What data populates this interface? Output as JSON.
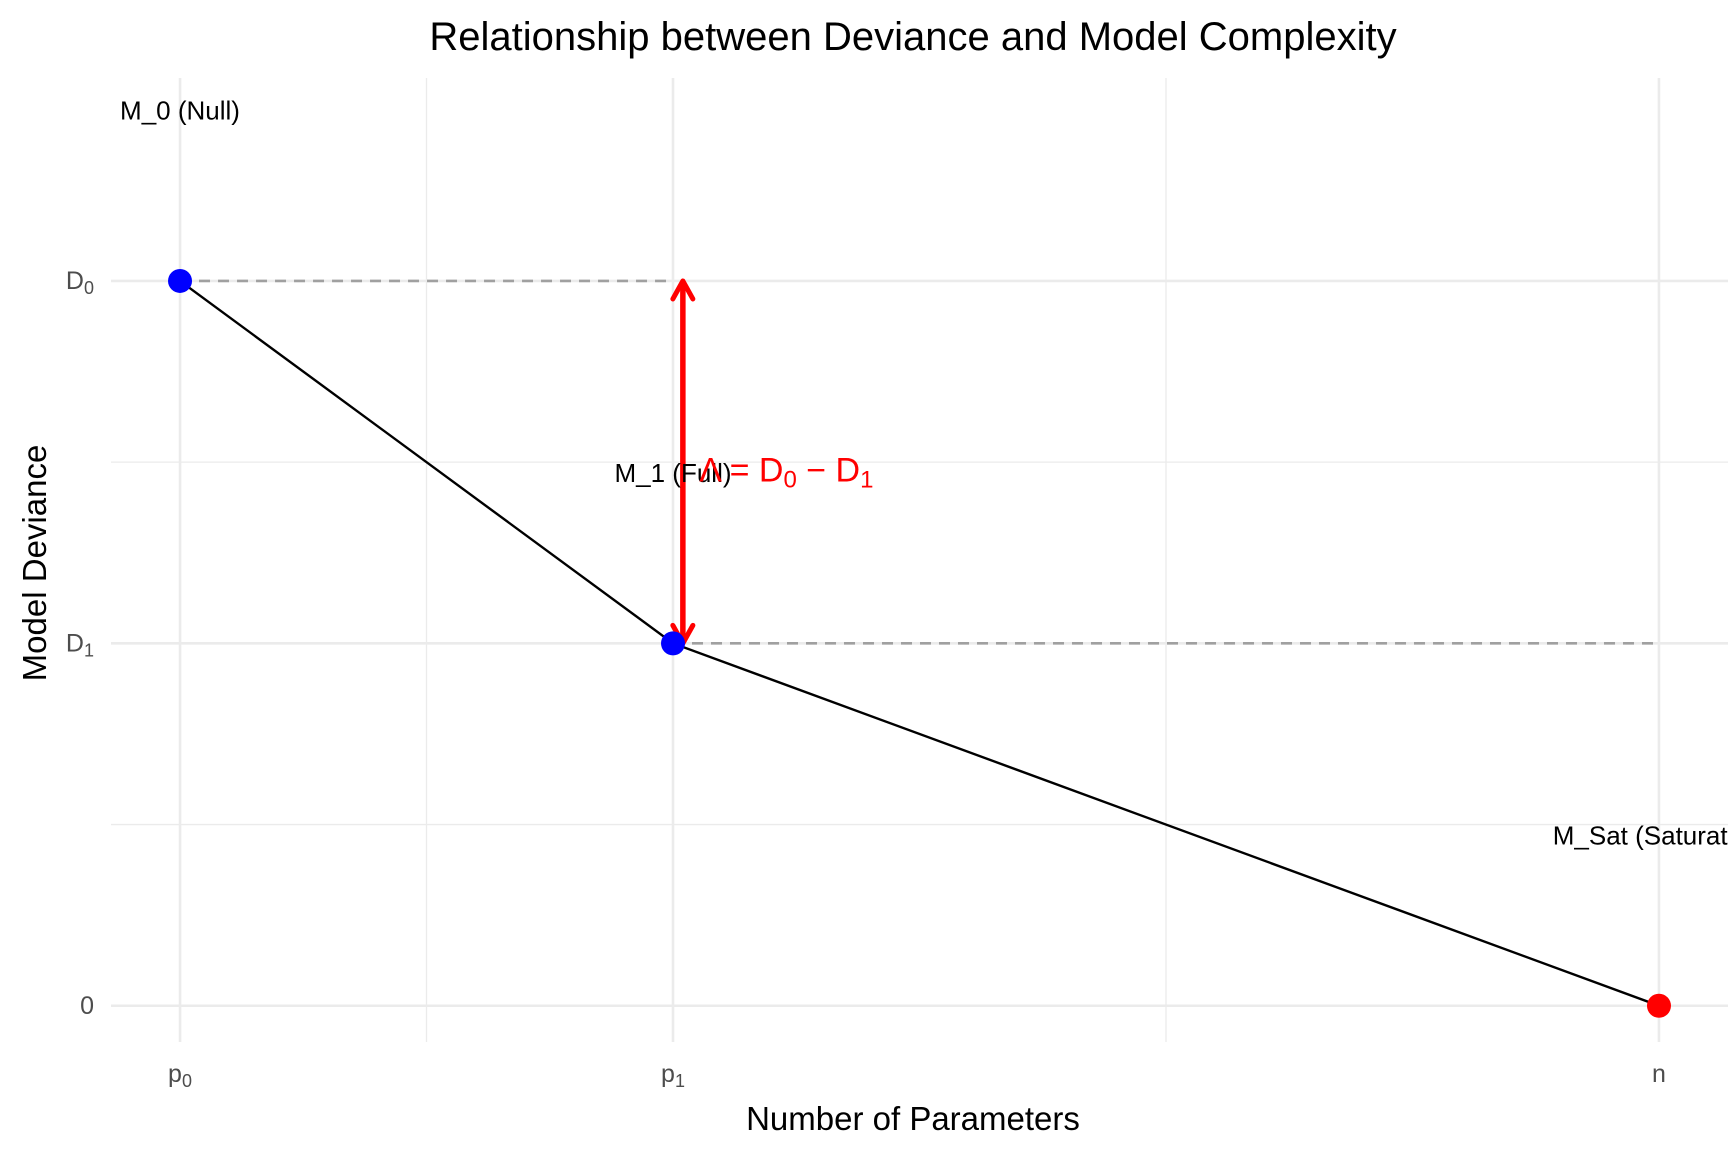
{
  "chart_data": {
    "type": "line",
    "title": "Relationship between Deviance and Model Complexity",
    "xlabel": "Number of Parameters",
    "ylabel": "Model Deviance",
    "x_ticks": [
      {
        "base": "p",
        "sub": "0",
        "value": 0
      },
      {
        "base": "p",
        "sub": "1",
        "value": 1
      },
      {
        "base": "n",
        "sub": "",
        "value": 3
      }
    ],
    "y_ticks": [
      {
        "base": "0",
        "sub": "",
        "value": 0
      },
      {
        "base": "D",
        "sub": "1",
        "value": 1
      },
      {
        "base": "D",
        "sub": "0",
        "value": 2
      }
    ],
    "xlim": [
      -0.14,
      3.14
    ],
    "ylim": [
      -0.1,
      2.56
    ],
    "x_minor_breaks": [
      0.5,
      2.0
    ],
    "y_minor_breaks": [
      0.5,
      1.5
    ],
    "grid": true,
    "points": [
      {
        "x": 0,
        "y": 2,
        "label": "M_0 (Null)",
        "color": "#0000ff",
        "label_y": 2.47
      },
      {
        "x": 1,
        "y": 1,
        "label": "M_1 (Full)",
        "color": "#0000ff",
        "label_y": 1.47
      },
      {
        "x": 3,
        "y": 0,
        "label": "M_Sat (Saturated)",
        "color": "#ff0000",
        "label_y": 0.47
      }
    ],
    "reference_lines": [
      {
        "x_from": 0,
        "x_to": 1,
        "y": 2,
        "style": "dashed",
        "color": "#a0a0a0"
      },
      {
        "x_from": 1,
        "x_to": 3,
        "y": 1,
        "style": "dashed",
        "color": "#a0a0a0"
      }
    ],
    "arrow": {
      "x": 1.02,
      "y_from": 1,
      "y_to": 2,
      "color": "#ff0000"
    },
    "annotation": {
      "text_parts": [
        "Λ = D",
        "0",
        " − D",
        "1"
      ],
      "x": 1.23,
      "y": 1.48,
      "color": "#ff0000"
    }
  }
}
